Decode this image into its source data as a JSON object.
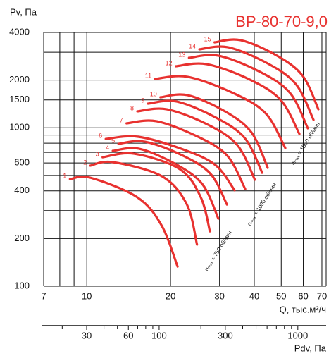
{
  "chart_data": {
    "type": "line",
    "title": "ВР-80-70-9,0",
    "y_label": "Pv, Па",
    "x_label": "Q, тыс.м³/ч",
    "x2_label": "Pdv, Па",
    "log_x": true,
    "log_y": true,
    "grid": true,
    "color": "#e8312f",
    "xlim": [
      7,
      72.5
    ],
    "xticks": [
      7,
      10,
      20,
      30,
      40,
      50,
      60,
      70
    ],
    "xminor": [
      8,
      9
    ],
    "ylim": [
      100,
      4000
    ],
    "yticks": [
      100,
      200,
      400,
      600,
      1000,
      1500,
      2000,
      4000
    ],
    "yminor": [
      300,
      500,
      700,
      800,
      900,
      3000
    ],
    "x2lim": [
      14.7,
      1600
    ],
    "x2ticks": [
      30,
      60,
      100,
      300,
      1000
    ],
    "x2minor": [
      20,
      40,
      50,
      70,
      80,
      90,
      200,
      400,
      500,
      600,
      700,
      800,
      900
    ],
    "annotations": [
      "nₘₐₓ = 750 об/мин",
      "nₘₐₓ = 1000 об/мин",
      "nₘₐₓ = 1500 об/мин"
    ],
    "series": [
      {
        "name": "1",
        "x": [
          8.7,
          10.3,
          15.2,
          18.6,
          21.2
        ],
        "values": [
          474,
          484,
          364,
          241,
          133
        ]
      },
      {
        "name": "2",
        "x": [
          10.3,
          12.4,
          18.6,
          22.9,
          24.9
        ],
        "values": [
          577,
          607,
          495,
          328,
          183
        ]
      },
      {
        "name": "3",
        "x": [
          11.4,
          14.8,
          21.6,
          25.7,
          27.7
        ],
        "values": [
          652,
          686,
          548,
          364,
          222
        ]
      },
      {
        "name": "4",
        "x": [
          12.4,
          15.4,
          20.9,
          26.1,
          29.7
        ],
        "values": [
          715,
          738,
          589,
          438,
          267
        ]
      },
      {
        "name": "5",
        "x": [
          13.0,
          16.2,
          22.2,
          27.9,
          31.9
        ],
        "values": [
          793,
          817,
          666,
          510,
          328
        ]
      },
      {
        "name": "6",
        "x": [
          11.7,
          15.3,
          22.2,
          29.0,
          34.0
        ],
        "values": [
          851,
          878,
          730,
          582,
          403
        ]
      },
      {
        "name": "7",
        "x": [
          13.9,
          17.8,
          25.1,
          32.0,
          37.1
        ],
        "values": [
          1067,
          1100,
          878,
          666,
          411
        ]
      },
      {
        "name": "8",
        "x": [
          15.2,
          19.4,
          27.3,
          34.8,
          40.2
        ],
        "values": [
          1270,
          1309,
          1045,
          776,
          470
        ]
      },
      {
        "name": "9",
        "x": [
          16.6,
          21.0,
          29.2,
          37.0,
          42.7
        ],
        "values": [
          1421,
          1466,
          1157,
          860,
          520
        ]
      },
      {
        "name": "10",
        "x": [
          18.4,
          23.0,
          31.4,
          39.1,
          44.7
        ],
        "values": [
          1558,
          1607,
          1270,
          934,
          559
        ]
      },
      {
        "name": "11",
        "x": [
          17.6,
          23.0,
          33.6,
          44.0,
          51.7
        ],
        "values": [
          2034,
          2098,
          1657,
          1231,
          745
        ]
      },
      {
        "name": "12",
        "x": [
          20.9,
          27.0,
          38.6,
          49.8,
          58.1
        ],
        "values": [
          2446,
          2522,
          2013,
          1496,
          915
        ]
      },
      {
        "name": "13",
        "x": [
          23.3,
          29.8,
          42.0,
          53.8,
          62.3
        ],
        "values": [
          2766,
          2852,
          2253,
          1657,
          993
        ]
      },
      {
        "name": "14",
        "x": [
          25.4,
          32.1,
          44.7,
          56.6,
          65.3
        ],
        "values": [
          3128,
          3226,
          2548,
          1874,
          1123
        ]
      },
      {
        "name": "15",
        "x": [
          28.8,
          35.7,
          48.3,
          59.8,
          68.0
        ],
        "values": [
          3466,
          3574,
          2852,
          2120,
          1309
        ]
      }
    ]
  }
}
